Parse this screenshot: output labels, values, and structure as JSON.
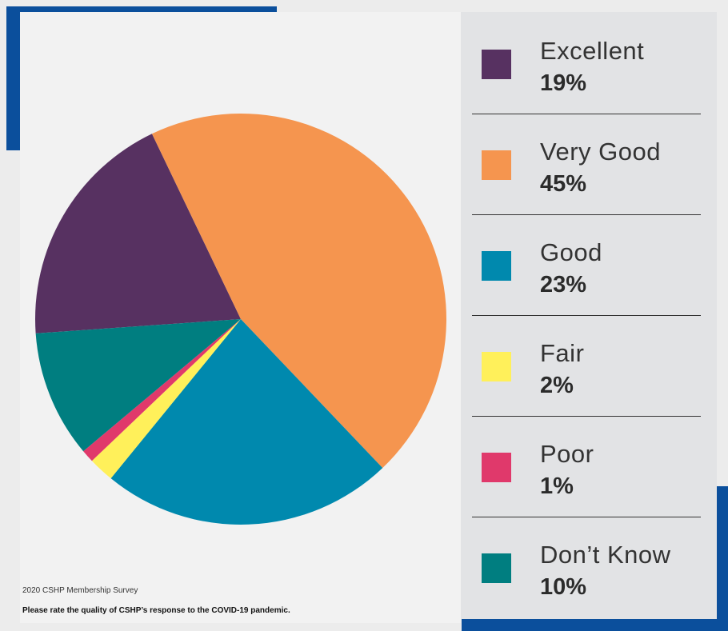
{
  "source_note": "2020 CSHP Membership Survey",
  "question": "Please rate the quality of CSHP’s response to the COVID-19 pandemic.",
  "chart_data": {
    "type": "pie",
    "categories": [
      "Excellent",
      "Very Good",
      "Good",
      "Fair",
      "Poor",
      "Don’t Know"
    ],
    "values": [
      19,
      45,
      23,
      2,
      1,
      10
    ],
    "value_labels": [
      "19%",
      "45%",
      "23%",
      "2%",
      "1%",
      "10%"
    ],
    "colors": [
      "#573161",
      "#f5954f",
      "#0089ae",
      "#fff05a",
      "#e0396b",
      "#007e80"
    ],
    "legend_placement": "right"
  },
  "legend": [
    {
      "label": "Excellent",
      "value": "19%",
      "color": "#573161"
    },
    {
      "label": "Very Good",
      "value": "45%",
      "color": "#f5954f"
    },
    {
      "label": "Good",
      "value": "23%",
      "color": "#0089ae"
    },
    {
      "label": "Fair",
      "value": "2%",
      "color": "#fff05a"
    },
    {
      "label": "Poor",
      "value": "1%",
      "color": "#e0396b"
    },
    {
      "label": "Don’t Know",
      "value": "10%",
      "color": "#007e80"
    }
  ]
}
